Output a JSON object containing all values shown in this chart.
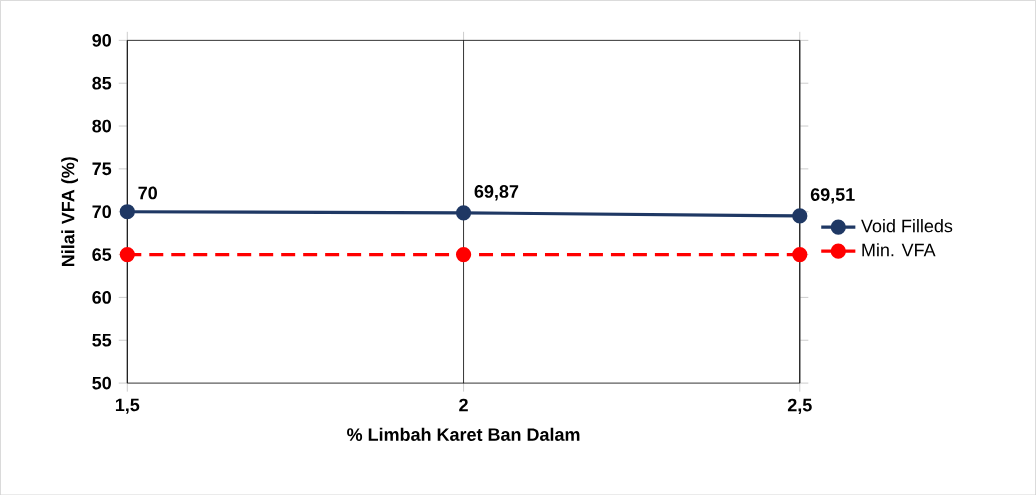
{
  "chart_data": {
    "type": "line",
    "xlabel": "% Limbah Karet Ban Dalam",
    "ylabel": "Nilai VFA (%)",
    "x": [
      1.5,
      2,
      2.5
    ],
    "series": [
      {
        "name": "Void Filleds",
        "color": "#1f3864",
        "values": [
          70,
          69.87,
          69.51
        ],
        "value_labels": [
          "70",
          "69,87",
          "69,51"
        ],
        "marker": "circle",
        "line_style": "solid"
      },
      {
        "name": "Min. VFA",
        "color": "#ff0000",
        "values": [
          65,
          65,
          65
        ],
        "marker": "circle",
        "line_style": "dashed"
      }
    ],
    "xlim": [
      1.5,
      2.5
    ],
    "ylim": [
      50,
      90
    ],
    "xticks": [
      {
        "value": 1.5,
        "label": "1,5"
      },
      2,
      {
        "value": 2.5,
        "label": "2,5"
      }
    ],
    "yticks": [
      50,
      55,
      60,
      65,
      70,
      75,
      80,
      85,
      90
    ],
    "grid": "x",
    "legend": "right"
  }
}
